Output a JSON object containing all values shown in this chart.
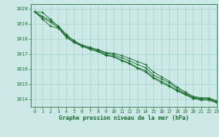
{
  "title": "Graphe pression niveau de la mer (hPa)",
  "bg_color": "#cce9e8",
  "grid_color": "#9dcfcc",
  "line_color": "#1a6e2e",
  "xlim": [
    -0.5,
    23
  ],
  "ylim": [
    1013.5,
    1020.3
  ],
  "yticks": [
    1014,
    1015,
    1016,
    1017,
    1018,
    1019,
    1020
  ],
  "xticks": [
    0,
    1,
    2,
    3,
    4,
    5,
    6,
    7,
    8,
    9,
    10,
    11,
    12,
    13,
    14,
    15,
    16,
    17,
    18,
    19,
    20,
    21,
    22,
    23
  ],
  "series": [
    [
      1019.8,
      1019.75,
      1019.3,
      1018.8,
      1018.2,
      1017.9,
      1017.5,
      1017.4,
      1017.3,
      1017.1,
      1017.05,
      1016.9,
      1016.7,
      1016.5,
      1016.3,
      1015.8,
      1015.5,
      1015.2,
      1014.8,
      1014.5,
      1014.2,
      1014.1,
      1014.1,
      1013.9
    ],
    [
      1019.8,
      1019.5,
      1019.2,
      1018.85,
      1018.3,
      1017.85,
      1017.6,
      1017.45,
      1017.25,
      1017.05,
      1016.95,
      1016.75,
      1016.55,
      1016.3,
      1016.1,
      1015.6,
      1015.35,
      1015.1,
      1014.7,
      1014.4,
      1014.15,
      1014.05,
      1014.05,
      1013.85
    ],
    [
      1019.8,
      1019.4,
      1019.1,
      1018.75,
      1018.15,
      1017.8,
      1017.55,
      1017.35,
      1017.2,
      1016.95,
      1016.85,
      1016.6,
      1016.4,
      1016.1,
      1015.9,
      1015.45,
      1015.2,
      1014.9,
      1014.6,
      1014.35,
      1014.1,
      1014.0,
      1014.0,
      1013.8
    ],
    [
      1019.8,
      1019.3,
      1018.85,
      1018.7,
      1018.1,
      1017.75,
      1017.5,
      1017.3,
      1017.15,
      1016.9,
      1016.8,
      1016.55,
      1016.35,
      1016.05,
      1015.8,
      1015.4,
      1015.1,
      1014.85,
      1014.55,
      1014.3,
      1014.05,
      1013.95,
      1013.95,
      1013.75
    ]
  ]
}
